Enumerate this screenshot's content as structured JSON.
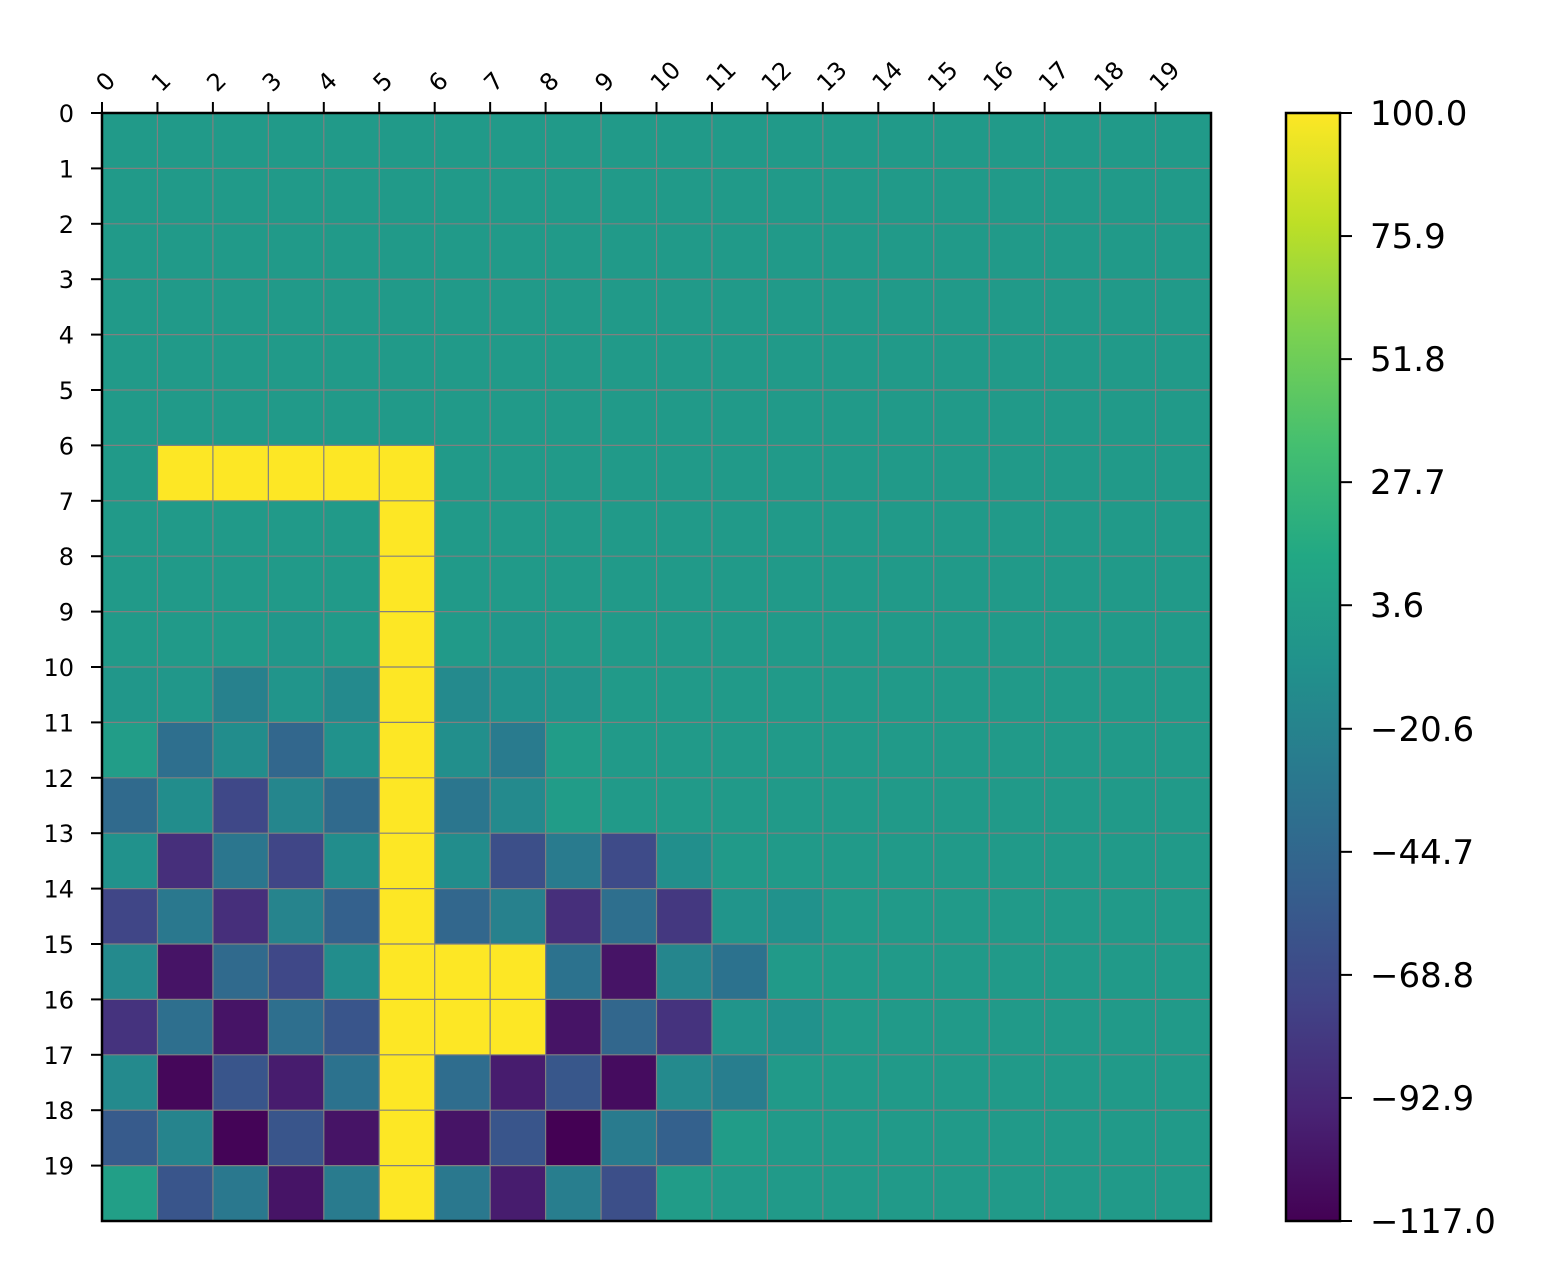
{
  "chart_data": {
    "type": "heatmap",
    "title": "",
    "xlabel": "",
    "ylabel": "",
    "x_ticks": [
      "0",
      "1",
      "2",
      "3",
      "4",
      "5",
      "6",
      "7",
      "8",
      "9",
      "10",
      "11",
      "12",
      "13",
      "14",
      "15",
      "16",
      "17",
      "18",
      "19"
    ],
    "y_ticks": [
      "0",
      "1",
      "2",
      "3",
      "4",
      "5",
      "6",
      "7",
      "8",
      "9",
      "10",
      "11",
      "12",
      "13",
      "14",
      "15",
      "16",
      "17",
      "18",
      "19"
    ],
    "x_tick_position": "top",
    "grid": true,
    "grid_color": "#808080",
    "colormap": "viridis",
    "value_range": [
      -117.0,
      100.0
    ],
    "colorbar": {
      "position": "right",
      "ticks": [
        "100.0",
        "75.9",
        "51.8",
        "27.7",
        "3.6",
        "−20.6",
        "−44.7",
        "−68.8",
        "−92.9",
        "−117.0"
      ],
      "tick_values": [
        100.0,
        75.9,
        51.8,
        27.7,
        3.6,
        -20.6,
        -44.7,
        -68.8,
        -92.9,
        -117.0
      ]
    },
    "values": [
      [
        0,
        0,
        0,
        0,
        0,
        0,
        0,
        0,
        0,
        0,
        0,
        0,
        0,
        0,
        0,
        0,
        0,
        0,
        0,
        0
      ],
      [
        0,
        0,
        0,
        0,
        0,
        0,
        0,
        0,
        0,
        0,
        0,
        0,
        0,
        0,
        0,
        0,
        0,
        0,
        0,
        0
      ],
      [
        0,
        0,
        0,
        0,
        0,
        0,
        0,
        0,
        0,
        0,
        0,
        0,
        0,
        0,
        0,
        0,
        0,
        0,
        0,
        0
      ],
      [
        0,
        0,
        0,
        0,
        0,
        0,
        0,
        0,
        0,
        0,
        0,
        0,
        0,
        0,
        0,
        0,
        0,
        0,
        0,
        0
      ],
      [
        0,
        0,
        0,
        0,
        0,
        0,
        0,
        0,
        0,
        0,
        0,
        0,
        0,
        0,
        0,
        0,
        0,
        0,
        0,
        0
      ],
      [
        0,
        0,
        0,
        0,
        0,
        0,
        0,
        0,
        0,
        0,
        0,
        0,
        0,
        0,
        0,
        0,
        0,
        0,
        0,
        0
      ],
      [
        0,
        100,
        100,
        100,
        100,
        100,
        0,
        0,
        0,
        0,
        0,
        0,
        0,
        0,
        0,
        0,
        0,
        0,
        0,
        0
      ],
      [
        0,
        0,
        0,
        0,
        0,
        100,
        0,
        0,
        0,
        0,
        0,
        0,
        0,
        0,
        0,
        0,
        0,
        0,
        0,
        0
      ],
      [
        0,
        0,
        0,
        0,
        0,
        100,
        0,
        0,
        0,
        0,
        0,
        0,
        0,
        0,
        0,
        0,
        0,
        0,
        0,
        0
      ],
      [
        0,
        0,
        0,
        -3,
        0,
        100,
        0,
        -3,
        0,
        0,
        0,
        0,
        0,
        0,
        0,
        0,
        0,
        0,
        0,
        0
      ],
      [
        -3,
        -3,
        -22,
        -5,
        -15,
        100,
        -15,
        -8,
        -5,
        0,
        0,
        0,
        0,
        0,
        0,
        0,
        0,
        0,
        0,
        0
      ],
      [
        3,
        -38,
        -12,
        -45,
        -8,
        100,
        -10,
        -28,
        2,
        0,
        0,
        0,
        0,
        0,
        0,
        0,
        0,
        0,
        0,
        0
      ],
      [
        -42,
        -12,
        -70,
        -18,
        -42,
        100,
        -32,
        -15,
        2,
        0,
        0,
        0,
        0,
        0,
        0,
        0,
        0,
        0,
        0,
        0
      ],
      [
        -8,
        -88,
        -32,
        -72,
        -12,
        100,
        -12,
        -65,
        -28,
        -68,
        -10,
        0,
        0,
        0,
        0,
        0,
        0,
        0,
        0,
        0
      ],
      [
        -72,
        -30,
        -88,
        -20,
        -50,
        100,
        -45,
        -22,
        -88,
        -38,
        -82,
        -5,
        -8,
        0,
        0,
        0,
        0,
        0,
        0,
        0
      ],
      [
        -15,
        -105,
        -42,
        -70,
        -12,
        100,
        100,
        100,
        -35,
        -105,
        -18,
        -35,
        0,
        0,
        0,
        0,
        0,
        0,
        0,
        0
      ],
      [
        -85,
        -38,
        -105,
        -38,
        -60,
        100,
        100,
        100,
        -105,
        -45,
        -85,
        -5,
        -8,
        0,
        0,
        0,
        0,
        0,
        0,
        0
      ],
      [
        -15,
        -113,
        -60,
        -100,
        -35,
        100,
        -40,
        -100,
        -58,
        -110,
        -15,
        -25,
        0,
        0,
        0,
        0,
        0,
        0,
        0,
        0
      ],
      [
        -55,
        -20,
        -115,
        -60,
        -105,
        100,
        -105,
        -60,
        -117,
        -28,
        -50,
        2,
        0,
        0,
        0,
        0,
        0,
        0,
        0,
        0
      ],
      [
        5,
        -60,
        -30,
        -105,
        -28,
        100,
        -30,
        -100,
        -25,
        -65,
        2,
        0,
        0,
        0,
        0,
        0,
        0,
        0,
        0,
        0
      ]
    ]
  }
}
